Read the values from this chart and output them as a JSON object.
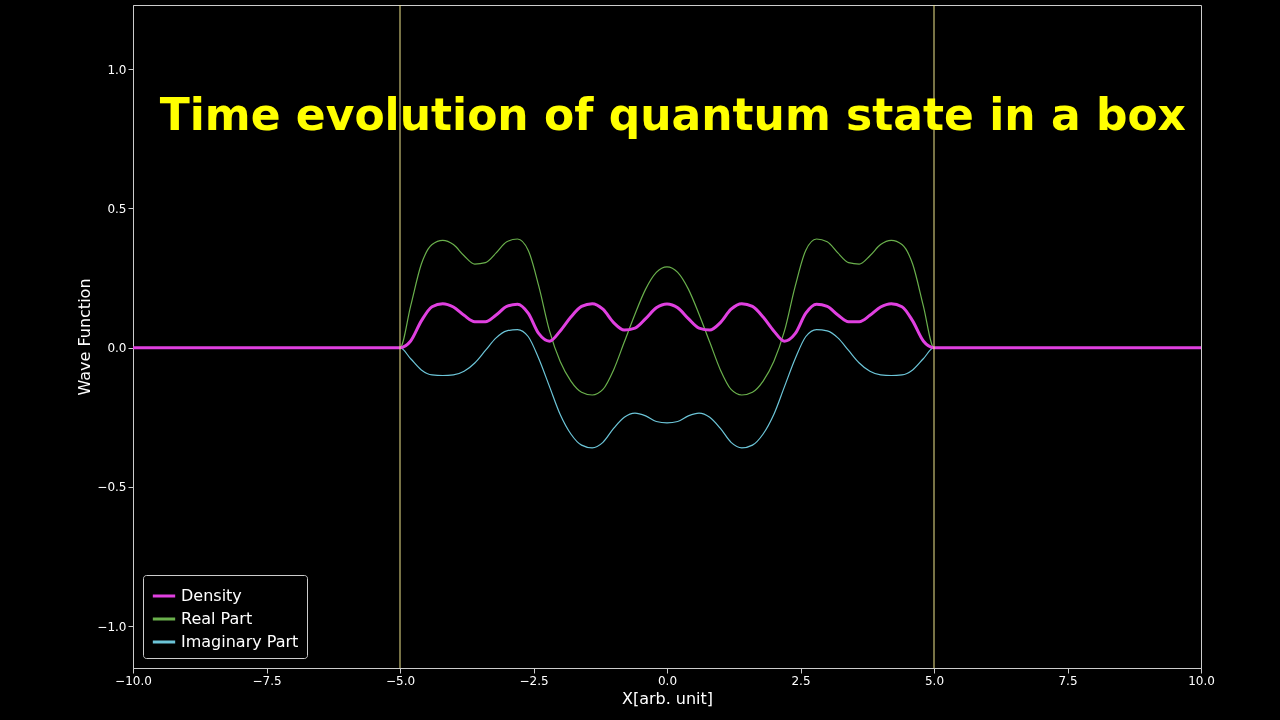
{
  "chart_data": {
    "type": "line",
    "title": "Time evolution of quantum state in a box",
    "xlabel": "X[arb. unit]",
    "ylabel": "Wave Function",
    "xlim": [
      -10,
      10
    ],
    "ylim": [
      -1.15,
      1.23
    ],
    "xticks": [
      {
        "value": -10,
        "label": "−10.0"
      },
      {
        "value": -7.5,
        "label": "−7.5"
      },
      {
        "value": -5,
        "label": "−5.0"
      },
      {
        "value": -2.5,
        "label": "−2.5"
      },
      {
        "value": 0,
        "label": "0.0"
      },
      {
        "value": 2.5,
        "label": "2.5"
      },
      {
        "value": 5,
        "label": "5.0"
      },
      {
        "value": 7.5,
        "label": "7.5"
      },
      {
        "value": 10,
        "label": "10.0"
      }
    ],
    "yticks": [
      {
        "value": -1,
        "label": "−1.0"
      },
      {
        "value": -0.5,
        "label": "−0.5"
      },
      {
        "value": 0,
        "label": "0.0"
      },
      {
        "value": 0.5,
        "label": "0.5"
      },
      {
        "value": 1,
        "label": "1.0"
      }
    ],
    "x": [
      -10,
      -5,
      -4.8,
      -4.6,
      -4.4,
      -4.2,
      -4.0,
      -3.8,
      -3.6,
      -3.4,
      -3.2,
      -3.0,
      -2.8,
      -2.6,
      -2.4,
      -2.2,
      -2.0,
      -1.8,
      -1.6,
      -1.4,
      -1.2,
      -1.0,
      -0.8,
      -0.6,
      -0.4,
      -0.2,
      0,
      0.2,
      0.4,
      0.6,
      0.8,
      1.0,
      1.2,
      1.4,
      1.6,
      1.8,
      2.0,
      2.2,
      2.4,
      2.6,
      2.8,
      3.0,
      3.2,
      3.4,
      3.6,
      3.8,
      4.0,
      4.2,
      4.4,
      4.6,
      4.8,
      5,
      10
    ],
    "series": [
      {
        "name": "Density",
        "color": "#e040e0",
        "values": [
          0,
          0,
          0.024,
          0.096,
          0.147,
          0.158,
          0.146,
          0.116,
          0.093,
          0.093,
          0.117,
          0.148,
          0.156,
          0.124,
          0.05,
          0.023,
          0.06,
          0.11,
          0.148,
          0.158,
          0.138,
          0.09,
          0.063,
          0.07,
          0.104,
          0.143,
          0.157,
          0.143,
          0.104,
          0.07,
          0.063,
          0.09,
          0.138,
          0.158,
          0.148,
          0.11,
          0.06,
          0.023,
          0.05,
          0.124,
          0.156,
          0.148,
          0.117,
          0.093,
          0.093,
          0.116,
          0.146,
          0.158,
          0.147,
          0.096,
          0.024,
          0,
          0
        ]
      },
      {
        "name": "Real Part",
        "color": "#6ab04c",
        "values": [
          0,
          0,
          0.15,
          0.3,
          0.37,
          0.385,
          0.37,
          0.33,
          0.3,
          0.305,
          0.34,
          0.38,
          0.39,
          0.35,
          0.22,
          0.06,
          -0.05,
          -0.12,
          -0.16,
          -0.17,
          -0.15,
          -0.08,
          0.02,
          0.12,
          0.21,
          0.27,
          0.29,
          0.27,
          0.21,
          0.12,
          0.02,
          -0.08,
          -0.15,
          -0.17,
          -0.16,
          -0.12,
          -0.05,
          0.06,
          0.22,
          0.35,
          0.39,
          0.38,
          0.34,
          0.305,
          0.3,
          0.33,
          0.37,
          0.385,
          0.37,
          0.3,
          0.15,
          0,
          0
        ]
      },
      {
        "name": "Imaginary Part",
        "color": "#6cc5d8",
        "values": [
          0,
          0,
          -0.04,
          -0.08,
          -0.098,
          -0.1,
          -0.098,
          -0.085,
          -0.055,
          -0.01,
          0.035,
          0.06,
          0.065,
          0.04,
          -0.04,
          -0.14,
          -0.24,
          -0.31,
          -0.35,
          -0.36,
          -0.34,
          -0.29,
          -0.25,
          -0.235,
          -0.245,
          -0.265,
          -0.27,
          -0.265,
          -0.245,
          -0.235,
          -0.25,
          -0.29,
          -0.34,
          -0.36,
          -0.35,
          -0.31,
          -0.24,
          -0.14,
          -0.04,
          0.04,
          0.065,
          0.06,
          0.035,
          -0.01,
          -0.055,
          -0.085,
          -0.098,
          -0.1,
          -0.098,
          -0.08,
          -0.04,
          0,
          0
        ]
      }
    ],
    "ref_lines": [
      {
        "axis": "x",
        "value": -5,
        "color": "#f0e68c"
      },
      {
        "axis": "x",
        "value": 5,
        "color": "#f0e68c"
      }
    ],
    "legend": "bottom left",
    "grid": false,
    "marker": "none",
    "line_style": "solid"
  }
}
